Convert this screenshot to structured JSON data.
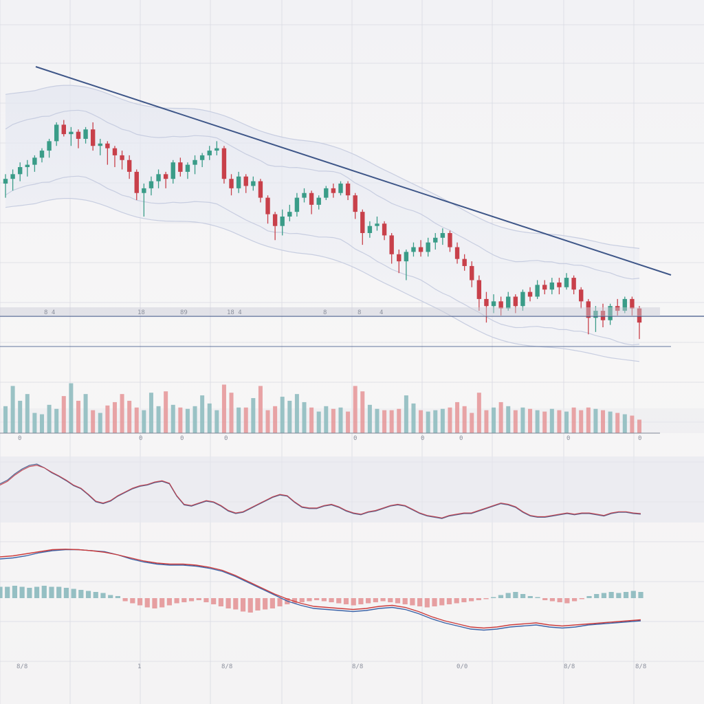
{
  "colors": {
    "up": "#3a9c88",
    "down": "#c8404a",
    "trendline": "#3e5688",
    "grid": "#d8dae2",
    "band": "#c7cde0",
    "vol_up": "#8fbcc0",
    "vol_down": "#e59a9c",
    "osc": "#3e5688",
    "osc_red": "#c23b46",
    "macd_line": "#3a63a8",
    "signal_line": "#cc3b3b"
  },
  "chart_data": [
    {
      "type": "candlestick",
      "panel": "price",
      "title": "",
      "xlabel": "",
      "ylabel": "",
      "grid": true,
      "ylim": [
        0,
        100
      ],
      "candles": [
        [
          60,
          64,
          54,
          62
        ],
        [
          62,
          66,
          57,
          64
        ],
        [
          64,
          69,
          61,
          67
        ],
        [
          67,
          70,
          63,
          68
        ],
        [
          68,
          72,
          65,
          71
        ],
        [
          71,
          75,
          69,
          74
        ],
        [
          74,
          79,
          71,
          78
        ],
        [
          78,
          86,
          76,
          85
        ],
        [
          85,
          87,
          80,
          81
        ],
        [
          81,
          84,
          76,
          82
        ],
        [
          82,
          83,
          75,
          79
        ],
        [
          79,
          84,
          77,
          83
        ],
        [
          83,
          86,
          74,
          76
        ],
        [
          76,
          79,
          72,
          77
        ],
        [
          77,
          78,
          68,
          75
        ],
        [
          75,
          76,
          67,
          72
        ],
        [
          72,
          74,
          66,
          70
        ],
        [
          70,
          72,
          62,
          65
        ],
        [
          65,
          66,
          53,
          56
        ],
        [
          56,
          60,
          46,
          58
        ],
        [
          58,
          63,
          55,
          61
        ],
        [
          61,
          66,
          58,
          64
        ],
        [
          64,
          65,
          58,
          62
        ],
        [
          62,
          70,
          60,
          69
        ],
        [
          69,
          71,
          63,
          65
        ],
        [
          65,
          69,
          62,
          68
        ],
        [
          68,
          72,
          64,
          70
        ],
        [
          70,
          73,
          67,
          72
        ],
        [
          72,
          76,
          70,
          74
        ],
        [
          74,
          78,
          72,
          75
        ],
        [
          75,
          76,
          60,
          62
        ],
        [
          62,
          64,
          55,
          58
        ],
        [
          58,
          65,
          56,
          63
        ],
        [
          63,
          64,
          56,
          59
        ],
        [
          59,
          63,
          57,
          61
        ],
        [
          61,
          62,
          52,
          54
        ],
        [
          54,
          55,
          43,
          47
        ],
        [
          47,
          48,
          36,
          42
        ],
        [
          42,
          49,
          38,
          46
        ],
        [
          46,
          51,
          44,
          48
        ],
        [
          48,
          56,
          46,
          54
        ],
        [
          54,
          58,
          52,
          56
        ],
        [
          56,
          57,
          47,
          51
        ],
        [
          51,
          55,
          49,
          54
        ],
        [
          54,
          59,
          53,
          58
        ],
        [
          58,
          60,
          54,
          56
        ],
        [
          56,
          61,
          55,
          60
        ],
        [
          60,
          61,
          53,
          55
        ],
        [
          55,
          56,
          45,
          48
        ],
        [
          48,
          49,
          34,
          39
        ],
        [
          39,
          44,
          37,
          42
        ],
        [
          42,
          46,
          40,
          43
        ],
        [
          43,
          44,
          36,
          38
        ],
        [
          38,
          39,
          26,
          30
        ],
        [
          30,
          32,
          22,
          27
        ],
        [
          27,
          32,
          19,
          31
        ],
        [
          31,
          35,
          29,
          33
        ],
        [
          33,
          36,
          29,
          31
        ],
        [
          31,
          37,
          29,
          35
        ],
        [
          35,
          39,
          32,
          37
        ],
        [
          37,
          41,
          34,
          39
        ],
        [
          39,
          40,
          31,
          33
        ],
        [
          33,
          35,
          26,
          28
        ],
        [
          28,
          30,
          23,
          25
        ],
        [
          25,
          27,
          16,
          19
        ],
        [
          19,
          21,
          6,
          11
        ],
        [
          11,
          14,
          1,
          8
        ],
        [
          8,
          13,
          5,
          10
        ],
        [
          10,
          12,
          4,
          7
        ],
        [
          7,
          14,
          6,
          12
        ],
        [
          12,
          13,
          5,
          8
        ],
        [
          8,
          15,
          6,
          14
        ],
        [
          14,
          16,
          10,
          12
        ],
        [
          12,
          19,
          11,
          17
        ],
        [
          17,
          19,
          13,
          15
        ],
        [
          15,
          20,
          13,
          18
        ],
        [
          18,
          20,
          13,
          16
        ],
        [
          16,
          22,
          15,
          20
        ],
        [
          20,
          21,
          13,
          15
        ],
        [
          15,
          16,
          7,
          10
        ],
        [
          10,
          11,
          -4,
          3
        ],
        [
          3,
          8,
          -3,
          6
        ],
        [
          6,
          9,
          -1,
          2
        ],
        [
          2,
          9,
          0,
          8
        ],
        [
          8,
          11,
          4,
          6
        ],
        [
          6,
          12,
          5,
          11
        ],
        [
          11,
          12,
          4,
          7
        ],
        [
          7,
          8,
          -6,
          1
        ]
      ]
    },
    {
      "type": "bar",
      "panel": "volume",
      "grid": true,
      "values": [
        40,
        70,
        48,
        58,
        30,
        28,
        42,
        36,
        55,
        74,
        48,
        58,
        34,
        30,
        41,
        46,
        58,
        48,
        38,
        34,
        60,
        40,
        62,
        42,
        38,
        36,
        40,
        56,
        44,
        34,
        72,
        60,
        38,
        38,
        52,
        70,
        34,
        40,
        54,
        48,
        58,
        46,
        38,
        32,
        40,
        36,
        38,
        32,
        70,
        62,
        42,
        36,
        34,
        34,
        36,
        56,
        44,
        34,
        32,
        34,
        36,
        38,
        46,
        40,
        30,
        60,
        34,
        38,
        46,
        40,
        34,
        38,
        36,
        34,
        32,
        36,
        34,
        32,
        38,
        34,
        38,
        36,
        34,
        32,
        30,
        28,
        26,
        20
      ]
    },
    {
      "type": "line",
      "panel": "oscillator",
      "grid": true,
      "ylim": [
        0,
        100
      ],
      "series": [
        {
          "values": [
            58,
            64,
            74,
            82,
            88,
            90,
            84,
            76,
            70,
            63,
            55,
            50,
            40,
            29,
            26,
            30,
            38,
            44,
            50,
            54,
            56,
            60,
            62,
            58,
            38,
            24,
            22,
            26,
            30,
            28,
            22,
            14,
            10,
            12,
            18,
            24,
            30,
            36,
            40,
            38,
            28,
            20,
            18,
            18,
            22,
            24,
            20,
            14,
            10,
            8,
            12,
            14,
            18,
            22,
            24,
            22,
            16,
            10,
            6,
            4,
            2,
            6,
            8,
            10,
            10,
            14,
            18,
            22,
            26,
            24,
            20,
            12,
            6,
            4,
            4,
            6,
            8,
            10,
            8,
            10,
            10,
            8,
            6,
            10,
            12,
            12,
            10,
            9
          ]
        },
        {
          "values": [
            56,
            62,
            72,
            80,
            86,
            88,
            84,
            77,
            71,
            64,
            56,
            51,
            41,
            30,
            27,
            31,
            39,
            45,
            51,
            55,
            57,
            61,
            63,
            59,
            39,
            25,
            23,
            27,
            31,
            29,
            23,
            15,
            11,
            13,
            19,
            25,
            31,
            37,
            41,
            39,
            29,
            21,
            19,
            19,
            23,
            25,
            21,
            15,
            11,
            9,
            13,
            15,
            19,
            23,
            25,
            23,
            17,
            11,
            7,
            5,
            3,
            7,
            9,
            11,
            11,
            15,
            19,
            23,
            27,
            25,
            21,
            13,
            7,
            5,
            5,
            7,
            9,
            11,
            9,
            11,
            11,
            9,
            7,
            11,
            13,
            13,
            11,
            10
          ]
        }
      ]
    },
    {
      "type": "line",
      "panel": "macd",
      "grid": true,
      "series": [
        {
          "values": [
            76,
            78,
            82,
            88,
            92,
            94,
            94,
            92,
            90,
            84,
            76,
            70,
            66,
            64,
            64,
            62,
            58,
            52,
            42,
            30,
            18,
            6,
            -6,
            -14,
            -20,
            -22,
            -24,
            -26,
            -24,
            -20,
            -18,
            -22,
            -30,
            -40,
            -48,
            -54,
            -60,
            -62,
            -60,
            -56,
            -54,
            -52,
            -56,
            -58,
            -56,
            -52,
            -50,
            -48,
            -46,
            -44
          ]
        },
        {
          "values": [
            80,
            82,
            86,
            90,
            94,
            95,
            94,
            92,
            89,
            84,
            78,
            72,
            68,
            66,
            66,
            64,
            60,
            54,
            44,
            32,
            20,
            8,
            -2,
            -10,
            -16,
            -18,
            -20,
            -22,
            -20,
            -16,
            -14,
            -18,
            -26,
            -36,
            -44,
            -50,
            -56,
            -58,
            -56,
            -52,
            -50,
            -48,
            -52,
            -54,
            -52,
            -50,
            -48,
            -46,
            -44,
            -42
          ]
        }
      ],
      "histogram": [
        22,
        22,
        24,
        22,
        20,
        22,
        24,
        22,
        22,
        20,
        18,
        16,
        14,
        12,
        10,
        6,
        4,
        -6,
        -10,
        -14,
        -18,
        -20,
        -18,
        -14,
        -10,
        -8,
        -6,
        -4,
        -8,
        -12,
        -16,
        -20,
        -22,
        -26,
        -28,
        -24,
        -22,
        -20,
        -16,
        -12,
        -10,
        -8,
        -6,
        -4,
        -6,
        -8,
        -10,
        -12,
        -14,
        -12,
        -10,
        -8,
        -6,
        -8,
        -10,
        -12,
        -14,
        -16,
        -18,
        -16,
        -14,
        -12,
        -10,
        -8,
        -6,
        -4,
        -2,
        2,
        6,
        10,
        12,
        8,
        4,
        2,
        -4,
        -6,
        -8,
        -10,
        -6,
        -2,
        4,
        8,
        10,
        12,
        10,
        12,
        14,
        12
      ]
    }
  ],
  "axis_marks": {
    "price_row": [
      "8 4",
      "18",
      "89",
      "18 4",
      "8",
      "8",
      "4"
    ],
    "volume_row": [
      "0",
      "0",
      "0",
      "0",
      "0",
      "0",
      "0",
      "0",
      "0"
    ],
    "bottom_row": [
      "8/8",
      "1",
      "8/8",
      "8/8",
      "0/0",
      "8/8",
      "8/8"
    ]
  }
}
